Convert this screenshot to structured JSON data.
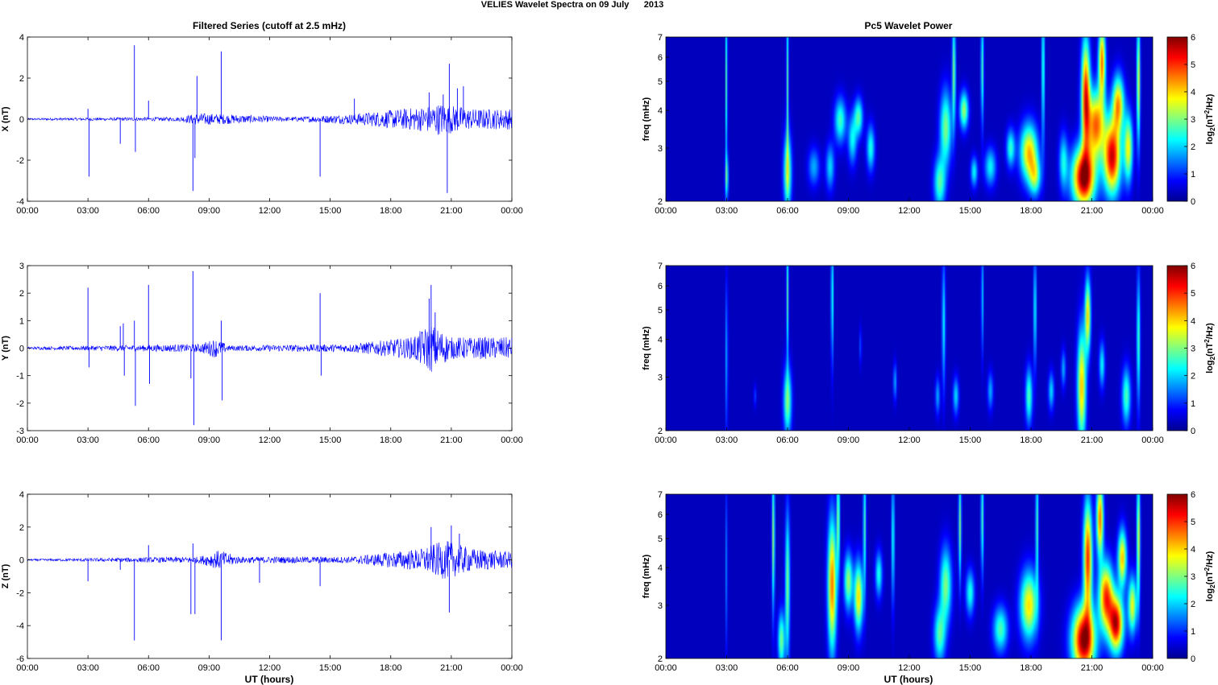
{
  "title": "VELIES Wavelet Spectra on 09 July      2013",
  "left_title": "Filtered Series (cutoff at 2.5 mHz)",
  "right_title": "Pc5 Wavelet Power",
  "xlabel": "UT (hours)",
  "spec_ylabel": "freq (mHz)",
  "colorbar_label": "log2(nT^2/Hz)",
  "colorbar_ticks": [
    "0",
    "1",
    "2",
    "3",
    "4",
    "5",
    "6"
  ],
  "colors": {
    "trace": "#0000ff",
    "background": "#00008f"
  },
  "chart_data": [
    {
      "type": "line",
      "component": "X",
      "ylabel": "X (nT)",
      "x_ticks": [
        "00:00",
        "03:00",
        "06:00",
        "09:00",
        "12:00",
        "15:00",
        "18:00",
        "21:00",
        "00:00"
      ],
      "y_ticks": [
        "4",
        "2",
        "0",
        "-2",
        "-4"
      ],
      "ylim": [
        -4,
        4
      ],
      "baseline_noise": [
        [
          0,
          0.05
        ],
        [
          7.5,
          0.1
        ],
        [
          8.5,
          0.3
        ],
        [
          13,
          0.1
        ],
        [
          16,
          0.25
        ],
        [
          19.5,
          0.6
        ],
        [
          20.5,
          0.8
        ],
        [
          22,
          0.5
        ],
        [
          24,
          0.5
        ]
      ],
      "spikes": [
        [
          3.0,
          0.5
        ],
        [
          3.05,
          -2.8
        ],
        [
          4.6,
          -1.2
        ],
        [
          5.3,
          3.6
        ],
        [
          5.35,
          -1.6
        ],
        [
          6.0,
          0.9
        ],
        [
          8.2,
          -3.5
        ],
        [
          8.3,
          -1.9
        ],
        [
          8.4,
          2.1
        ],
        [
          9.6,
          3.3
        ],
        [
          14.5,
          -2.8
        ],
        [
          16.2,
          1.0
        ],
        [
          19.9,
          1.3
        ],
        [
          20.6,
          1.2
        ],
        [
          20.8,
          -3.6
        ],
        [
          20.9,
          2.7
        ],
        [
          21.3,
          1.5
        ],
        [
          21.6,
          1.6
        ]
      ]
    },
    {
      "type": "line",
      "component": "Y",
      "ylabel": "Y (nT)",
      "x_ticks": [
        "00:00",
        "03:00",
        "06:00",
        "09:00",
        "12:00",
        "15:00",
        "18:00",
        "21:00",
        "00:00"
      ],
      "y_ticks": [
        "3",
        "2",
        "1",
        "0",
        "-1",
        "-2",
        "-3"
      ],
      "ylim": [
        -3,
        3
      ],
      "baseline_noise": [
        [
          0,
          0.05
        ],
        [
          8.5,
          0.15
        ],
        [
          9.3,
          0.35
        ],
        [
          10,
          0.1
        ],
        [
          16,
          0.15
        ],
        [
          19,
          0.4
        ],
        [
          20,
          0.9
        ],
        [
          21,
          0.4
        ],
        [
          24,
          0.4
        ]
      ],
      "spikes": [
        [
          3.0,
          2.2
        ],
        [
          3.05,
          -0.7
        ],
        [
          4.6,
          0.8
        ],
        [
          4.75,
          0.9
        ],
        [
          4.8,
          -1.0
        ],
        [
          5.3,
          1.0
        ],
        [
          5.35,
          -2.1
        ],
        [
          6.0,
          2.3
        ],
        [
          6.05,
          -1.3
        ],
        [
          8.1,
          -1.1
        ],
        [
          8.2,
          2.8
        ],
        [
          8.25,
          -2.8
        ],
        [
          9.6,
          1.0
        ],
        [
          9.65,
          -1.9
        ],
        [
          14.5,
          2.0
        ],
        [
          14.55,
          -1.0
        ],
        [
          19.9,
          1.8
        ],
        [
          20.0,
          2.3
        ],
        [
          20.2,
          1.3
        ]
      ]
    },
    {
      "type": "line",
      "component": "Z",
      "ylabel": "Z (nT)",
      "x_ticks": [
        "00:00",
        "03:00",
        "06:00",
        "09:00",
        "12:00",
        "15:00",
        "18:00",
        "21:00",
        "00:00"
      ],
      "y_ticks": [
        "4",
        "2",
        "0",
        "-2",
        "-4",
        "-6"
      ],
      "ylim": [
        -6,
        4
      ],
      "baseline_noise": [
        [
          0,
          0.05
        ],
        [
          8.5,
          0.2
        ],
        [
          9.5,
          0.6
        ],
        [
          10.5,
          0.2
        ],
        [
          16,
          0.2
        ],
        [
          19.5,
          0.7
        ],
        [
          20.7,
          1.2
        ],
        [
          22,
          0.7
        ],
        [
          24,
          0.5
        ]
      ],
      "spikes": [
        [
          3.0,
          -1.3
        ],
        [
          4.6,
          -0.6
        ],
        [
          5.3,
          -4.9
        ],
        [
          6.0,
          0.9
        ],
        [
          8.1,
          -3.3
        ],
        [
          8.2,
          1.0
        ],
        [
          8.3,
          -3.3
        ],
        [
          9.6,
          -4.9
        ],
        [
          11.5,
          -1.4
        ],
        [
          14.5,
          -1.6
        ],
        [
          20.0,
          2.0
        ],
        [
          20.9,
          -3.2
        ],
        [
          21.0,
          2.1
        ],
        [
          21.4,
          1.6
        ]
      ]
    },
    {
      "type": "heatmap",
      "component": "X",
      "ylabel": "freq (mHz)",
      "x_ticks": [
        "00:00",
        "03:00",
        "06:00",
        "09:00",
        "12:00",
        "15:00",
        "18:00",
        "21:00",
        "00:00"
      ],
      "y_ticks": [
        "7",
        "6",
        "5",
        "4",
        "3",
        "2"
      ],
      "yscale": "log",
      "ylim": [
        2,
        7
      ],
      "clim": [
        0,
        6
      ],
      "events": [
        [
          3.0,
          2.4,
          0.06,
          0.12,
          2.2
        ],
        [
          3.0,
          5.0,
          0.03,
          0.45,
          3.0
        ],
        [
          6.0,
          2.5,
          0.14,
          0.2,
          3.0
        ],
        [
          6.0,
          5.0,
          0.04,
          0.45,
          2.5
        ],
        [
          7.3,
          2.6,
          0.2,
          0.1,
          1.5
        ],
        [
          8.1,
          2.6,
          0.15,
          0.12,
          1.8
        ],
        [
          8.6,
          3.7,
          0.2,
          0.12,
          2.4
        ],
        [
          9.2,
          3.2,
          0.15,
          0.13,
          2.0
        ],
        [
          9.5,
          3.8,
          0.15,
          0.1,
          2.5
        ],
        [
          10.1,
          3.0,
          0.14,
          0.12,
          2.2
        ],
        [
          13.5,
          2.3,
          0.2,
          0.14,
          2.5
        ],
        [
          13.8,
          3.5,
          0.2,
          0.2,
          2.8
        ],
        [
          14.2,
          5.4,
          0.06,
          0.3,
          2.8
        ],
        [
          14.7,
          4.0,
          0.15,
          0.1,
          3.0
        ],
        [
          15.2,
          2.5,
          0.12,
          0.08,
          2.0
        ],
        [
          15.6,
          5.5,
          0.05,
          0.3,
          2.5
        ],
        [
          16.0,
          2.6,
          0.2,
          0.1,
          2.0
        ],
        [
          17.0,
          3.0,
          0.15,
          0.1,
          2.3
        ],
        [
          17.9,
          2.9,
          0.3,
          0.15,
          4.0
        ],
        [
          18.2,
          2.4,
          0.2,
          0.1,
          2.5
        ],
        [
          18.6,
          5.5,
          0.05,
          0.4,
          2.5
        ],
        [
          19.6,
          2.7,
          0.15,
          0.15,
          2.0
        ],
        [
          20.6,
          2.4,
          0.4,
          0.16,
          6.0
        ],
        [
          20.7,
          4.5,
          0.15,
          0.3,
          5.0
        ],
        [
          21.2,
          3.6,
          0.3,
          0.18,
          4.5
        ],
        [
          21.5,
          5.8,
          0.12,
          0.2,
          4.5
        ],
        [
          22.0,
          2.8,
          0.3,
          0.2,
          5.5
        ],
        [
          22.3,
          4.2,
          0.2,
          0.15,
          4.0
        ],
        [
          22.8,
          3.0,
          0.15,
          0.18,
          3.5
        ],
        [
          23.3,
          5.0,
          0.06,
          0.35,
          3.5
        ]
      ]
    },
    {
      "type": "heatmap",
      "component": "Y",
      "ylabel": "freq (mHz)",
      "x_ticks": [
        "00:00",
        "03:00",
        "06:00",
        "09:00",
        "12:00",
        "15:00",
        "18:00",
        "21:00",
        "00:00"
      ],
      "y_ticks": [
        "7",
        "6",
        "5",
        "4",
        "3",
        "2"
      ],
      "yscale": "log",
      "ylim": [
        2,
        7
      ],
      "clim": [
        0,
        6
      ],
      "events": [
        [
          3.0,
          3.5,
          0.04,
          0.4,
          1.6
        ],
        [
          4.4,
          2.6,
          0.05,
          0.06,
          0.8
        ],
        [
          6.0,
          2.5,
          0.14,
          0.18,
          2.8
        ],
        [
          6.0,
          5.5,
          0.04,
          0.35,
          2.5
        ],
        [
          8.2,
          5.5,
          0.04,
          0.35,
          2.5
        ],
        [
          9.6,
          3.8,
          0.04,
          0.1,
          1.0
        ],
        [
          11.3,
          2.9,
          0.06,
          0.1,
          1.5
        ],
        [
          13.4,
          2.6,
          0.08,
          0.1,
          1.5
        ],
        [
          13.7,
          4.5,
          0.06,
          0.35,
          2.0
        ],
        [
          14.3,
          2.6,
          0.1,
          0.1,
          1.8
        ],
        [
          15.6,
          5.5,
          0.04,
          0.3,
          1.8
        ],
        [
          16.0,
          2.7,
          0.1,
          0.1,
          1.5
        ],
        [
          17.9,
          2.6,
          0.12,
          0.15,
          2.5
        ],
        [
          18.2,
          5.0,
          0.05,
          0.3,
          2.2
        ],
        [
          19.0,
          2.7,
          0.1,
          0.1,
          1.8
        ],
        [
          19.6,
          3.2,
          0.08,
          0.1,
          1.5
        ],
        [
          20.5,
          2.8,
          0.15,
          0.3,
          4.0
        ],
        [
          20.8,
          4.8,
          0.1,
          0.2,
          3.8
        ],
        [
          21.5,
          3.3,
          0.1,
          0.12,
          2.0
        ],
        [
          22.7,
          2.6,
          0.15,
          0.15,
          2.5
        ],
        [
          23.3,
          4.0,
          0.06,
          0.35,
          2.5
        ]
      ]
    },
    {
      "type": "heatmap",
      "component": "Z",
      "ylabel": "freq (mHz)",
      "x_ticks": [
        "00:00",
        "03:00",
        "06:00",
        "09:00",
        "12:00",
        "15:00",
        "18:00",
        "21:00",
        "00:00"
      ],
      "y_ticks": [
        "7",
        "6",
        "5",
        "4",
        "3",
        "2"
      ],
      "yscale": "log",
      "ylim": [
        2,
        7
      ],
      "clim": [
        0,
        6
      ],
      "events": [
        [
          3.0,
          4.0,
          0.03,
          0.45,
          1.5
        ],
        [
          5.7,
          2.3,
          0.12,
          0.15,
          2.8
        ],
        [
          5.3,
          5.0,
          0.05,
          0.4,
          3.0
        ],
        [
          6.0,
          3.5,
          0.08,
          0.4,
          2.8
        ],
        [
          8.2,
          3.5,
          0.15,
          0.35,
          4.5
        ],
        [
          8.5,
          5.8,
          0.05,
          0.3,
          3.0
        ],
        [
          9.0,
          3.6,
          0.15,
          0.15,
          3.0
        ],
        [
          9.5,
          3.2,
          0.15,
          0.18,
          3.8
        ],
        [
          9.8,
          5.5,
          0.05,
          0.35,
          2.5
        ],
        [
          10.5,
          3.8,
          0.12,
          0.12,
          2.2
        ],
        [
          11.2,
          5.0,
          0.05,
          0.35,
          2.3
        ],
        [
          13.5,
          2.4,
          0.2,
          0.15,
          2.5
        ],
        [
          13.8,
          3.5,
          0.2,
          0.2,
          2.8
        ],
        [
          14.5,
          5.5,
          0.05,
          0.3,
          2.8
        ],
        [
          15.0,
          3.3,
          0.15,
          0.12,
          2.2
        ],
        [
          15.6,
          5.8,
          0.05,
          0.3,
          2.5
        ],
        [
          16.5,
          2.5,
          0.25,
          0.12,
          2.5
        ],
        [
          17.9,
          3.0,
          0.3,
          0.18,
          3.8
        ],
        [
          18.3,
          5.5,
          0.05,
          0.35,
          2.5
        ],
        [
          20.6,
          2.3,
          0.4,
          0.18,
          6.0
        ],
        [
          20.8,
          4.3,
          0.15,
          0.3,
          5.0
        ],
        [
          21.4,
          5.8,
          0.12,
          0.2,
          4.5
        ],
        [
          21.7,
          3.2,
          0.25,
          0.18,
          4.8
        ],
        [
          22.2,
          2.6,
          0.25,
          0.15,
          5.5
        ],
        [
          22.5,
          4.3,
          0.15,
          0.15,
          4.0
        ],
        [
          23.0,
          3.0,
          0.15,
          0.15,
          3.5
        ],
        [
          23.3,
          5.0,
          0.06,
          0.35,
          3.5
        ]
      ]
    }
  ]
}
